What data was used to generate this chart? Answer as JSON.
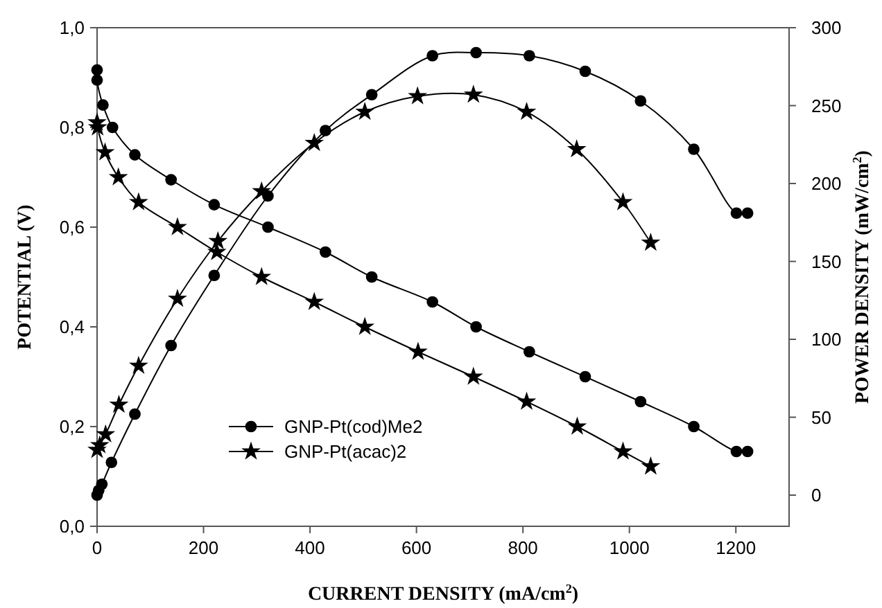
{
  "chart_data": {
    "type": "line",
    "xlabel": "CURRENT DENSITY (mA/cm$^{2}$)",
    "ylabel": "POTENTIAL (V)",
    "y2label": "POWER DENSITY (mW/cm$^{2}$)",
    "xlim": [
      0,
      1300
    ],
    "xticks": [
      0,
      200,
      400,
      600,
      800,
      1000,
      1200
    ],
    "ylim": [
      0,
      1
    ],
    "yticks": [
      {
        "value": 0,
        "label": "0,0"
      },
      {
        "value": 0.2,
        "label": "0,2"
      },
      {
        "value": 0.4,
        "label": "0,4"
      },
      {
        "value": 0.6,
        "label": "0,6"
      },
      {
        "value": 0.8,
        "label": "0,8"
      },
      {
        "value": 1,
        "label": "1,0"
      }
    ],
    "y2lim": [
      -20,
      300
    ],
    "y2ticks": [
      0,
      50,
      100,
      150,
      200,
      250,
      300
    ],
    "grid": false,
    "legend": "bottom left",
    "line_style": "solid",
    "series": [
      {
        "name": "GNP-Pt(cod)Me2",
        "color": "#000000",
        "marker": "circle",
        "x": [
          0,
          0,
          11,
          29,
          71,
          139,
          220,
          321,
          429,
          516,
          630,
          712,
          812,
          917,
          1021,
          1121,
          1201,
          1222
        ],
        "values": [
          0.915,
          0.895,
          0.845,
          0.8,
          0.745,
          0.695,
          0.645,
          0.6,
          0.55,
          0.5,
          0.45,
          0.4,
          0.35,
          0.3,
          0.25,
          0.2,
          0.15,
          0.15
        ]
      },
      {
        "name": "GNP-Pt(acac)2",
        "color": "#000000",
        "marker": "star",
        "x": [
          0,
          1,
          15,
          40,
          78,
          151,
          225,
          309,
          408,
          503,
          603,
          707,
          807,
          902,
          988,
          1040
        ],
        "values": [
          0.81,
          0.8,
          0.75,
          0.7,
          0.65,
          0.6,
          0.55,
          0.5,
          0.45,
          0.4,
          0.35,
          0.3,
          0.25,
          0.2,
          0.15,
          0.12
        ]
      },
      {
        "color": "#000000",
        "marker": "circle",
        "axis": "y2",
        "x": [
          0,
          3,
          9,
          27,
          71,
          139,
          220,
          321,
          429,
          516,
          630,
          712,
          812,
          917,
          1021,
          1121,
          1201,
          1222
        ],
        "values": [
          0,
          3,
          7,
          21,
          52,
          96,
          141,
          192,
          234,
          257,
          282,
          284,
          282,
          272,
          253,
          222,
          181,
          181
        ]
      },
      {
        "color": "#000000",
        "marker": "star",
        "axis": "y2",
        "x": [
          0,
          5,
          16,
          41,
          78,
          151,
          227,
          309,
          408,
          503,
          602,
          707,
          807,
          901,
          988,
          1040
        ],
        "values": [
          29,
          32,
          39,
          58,
          83,
          126,
          163,
          195,
          226,
          246,
          256,
          257,
          246,
          222,
          188,
          162
        ]
      }
    ]
  }
}
